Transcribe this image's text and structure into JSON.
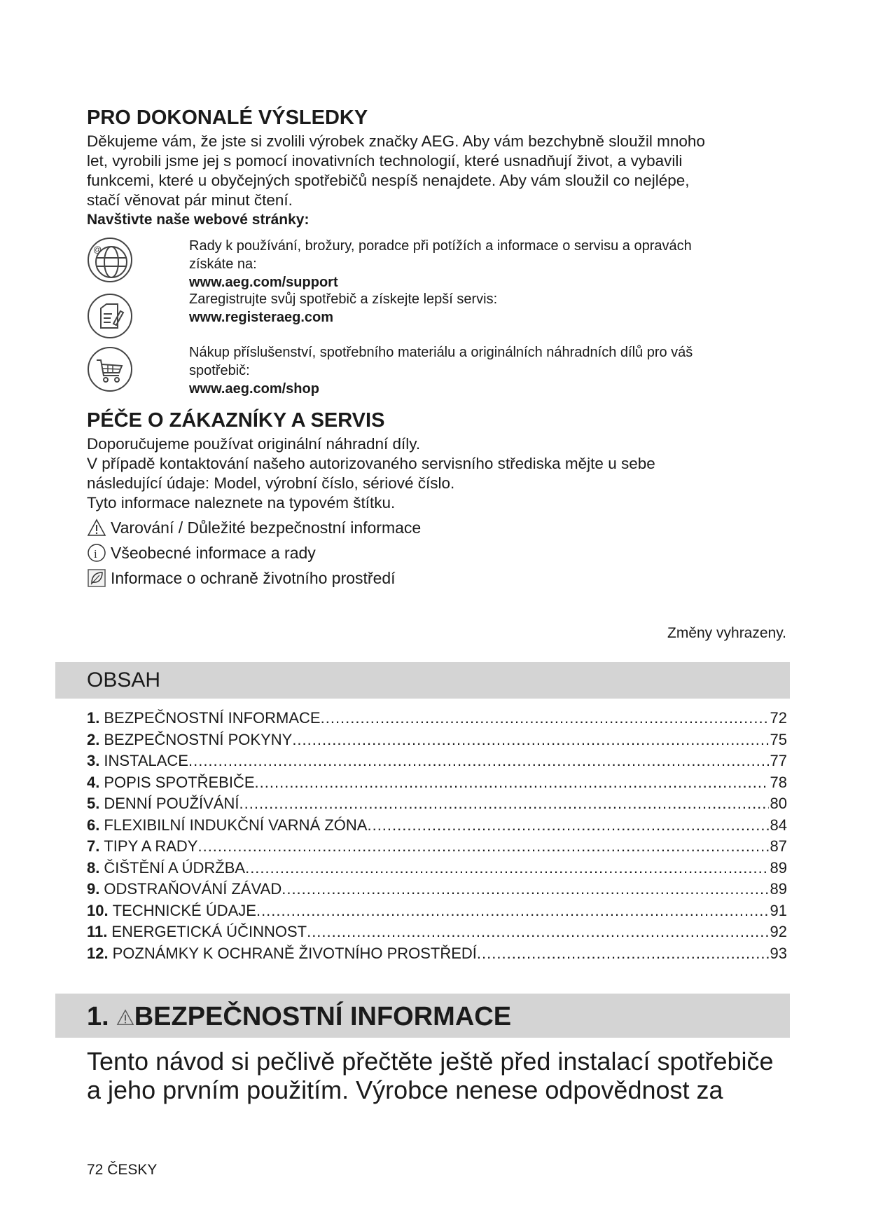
{
  "intro": {
    "heading": "PRO DOKONALÉ VÝSLEDKY",
    "paragraph_lines": [
      "Děkujeme vám, že jste si zvolili výrobek značky AEG. Aby vám bezchybně sloužil mnoho",
      "let, vyrobili jsme jej s pomocí inovativních technologií, které usnadňují život, a vybavili",
      "funkcemi, které u obyčejných spotřebičů nespíš nenajdete. Aby vám sloužil co nejlépe,",
      "stačí věnovat pár minut čtení."
    ],
    "visit_label": "Navštivte naše webové stránky:"
  },
  "web_links": [
    {
      "icon": "globe-at-icon",
      "lines": [
        "Rady k používání, brožury, poradce při potížích a informace o servisu a opravách",
        "získáte na:"
      ],
      "url": "www.aeg.com/support"
    },
    {
      "icon": "register-document-icon",
      "lines": [
        "Zaregistrujte svůj spotřebič a získejte lepší servis:"
      ],
      "url": "www.registeraeg.com"
    },
    {
      "icon": "shopping-cart-icon",
      "lines": [
        "Nákup příslušenství, spotřebního materiálu a originálních náhradních dílů pro váš",
        "spotřebič:"
      ],
      "url": "www.aeg.com/shop"
    }
  ],
  "service": {
    "heading": "PÉČE O ZÁKAZNÍKY A SERVIS",
    "lines": [
      "Doporučujeme používat originální náhradní díly.",
      "V případě kontaktování našeho autorizovaného servisního střediska mějte u sebe",
      "následující údaje: Model, výrobní číslo, sériové číslo.",
      "Tyto informace naleznete na typovém štítku."
    ],
    "legend": [
      {
        "icon": "warning-triangle-icon",
        "label": "Varování / Důležité bezpečnostní informace"
      },
      {
        "icon": "info-circle-icon",
        "label": "Všeobecné informace a rady"
      },
      {
        "icon": "leaf-icon",
        "label": "Informace o ochraně životního prostředí"
      }
    ],
    "changes_note": "Změny vyhrazeny."
  },
  "contents": {
    "title": "OBSAH",
    "items": [
      {
        "num": "1.",
        "title": "BEZPEČNOSTNÍ INFORMACE",
        "page": "72"
      },
      {
        "num": "2.",
        "title": "BEZPEČNOSTNÍ POKYNY",
        "page": "75"
      },
      {
        "num": "3.",
        "title": "INSTALACE",
        "page": "77"
      },
      {
        "num": "4.",
        "title": "POPIS SPOTŘEBIČE",
        "page": "78"
      },
      {
        "num": "5.",
        "title": "DENNÍ POUŽÍVÁNÍ",
        "page": "80"
      },
      {
        "num": "6.",
        "title": "FLEXIBILNÍ INDUKČNÍ VARNÁ ZÓNA",
        "page": "84"
      },
      {
        "num": "7.",
        "title": "TIPY A RADY",
        "page": "87"
      },
      {
        "num": "8.",
        "title": "ČIŠTĚNÍ A ÚDRŽBA",
        "page": "89"
      },
      {
        "num": "9.",
        "title": "ODSTRAŇOVÁNÍ ZÁVAD",
        "page": "89"
      },
      {
        "num": "10.",
        "title": "TECHNICKÉ ÚDAJE",
        "page": "91"
      },
      {
        "num": "11.",
        "title": "ENERGETICKÁ ÚČINNOST",
        "page": "92"
      },
      {
        "num": "12.",
        "title": "POZNÁMKY K OCHRANĚ ŽIVOTNÍHO PROSTŘEDÍ",
        "page": "93"
      }
    ]
  },
  "section1": {
    "num": "1.",
    "title": "BEZPEČNOSTNÍ INFORMACE",
    "lead_lines": [
      "Tento návod si pečlivě přečtěte ještě před instalací spotřebiče",
      "a jeho prvním použitím. Výrobce nenese odpovědnost za"
    ]
  },
  "footer": {
    "page_label": "72 ČESKY"
  }
}
